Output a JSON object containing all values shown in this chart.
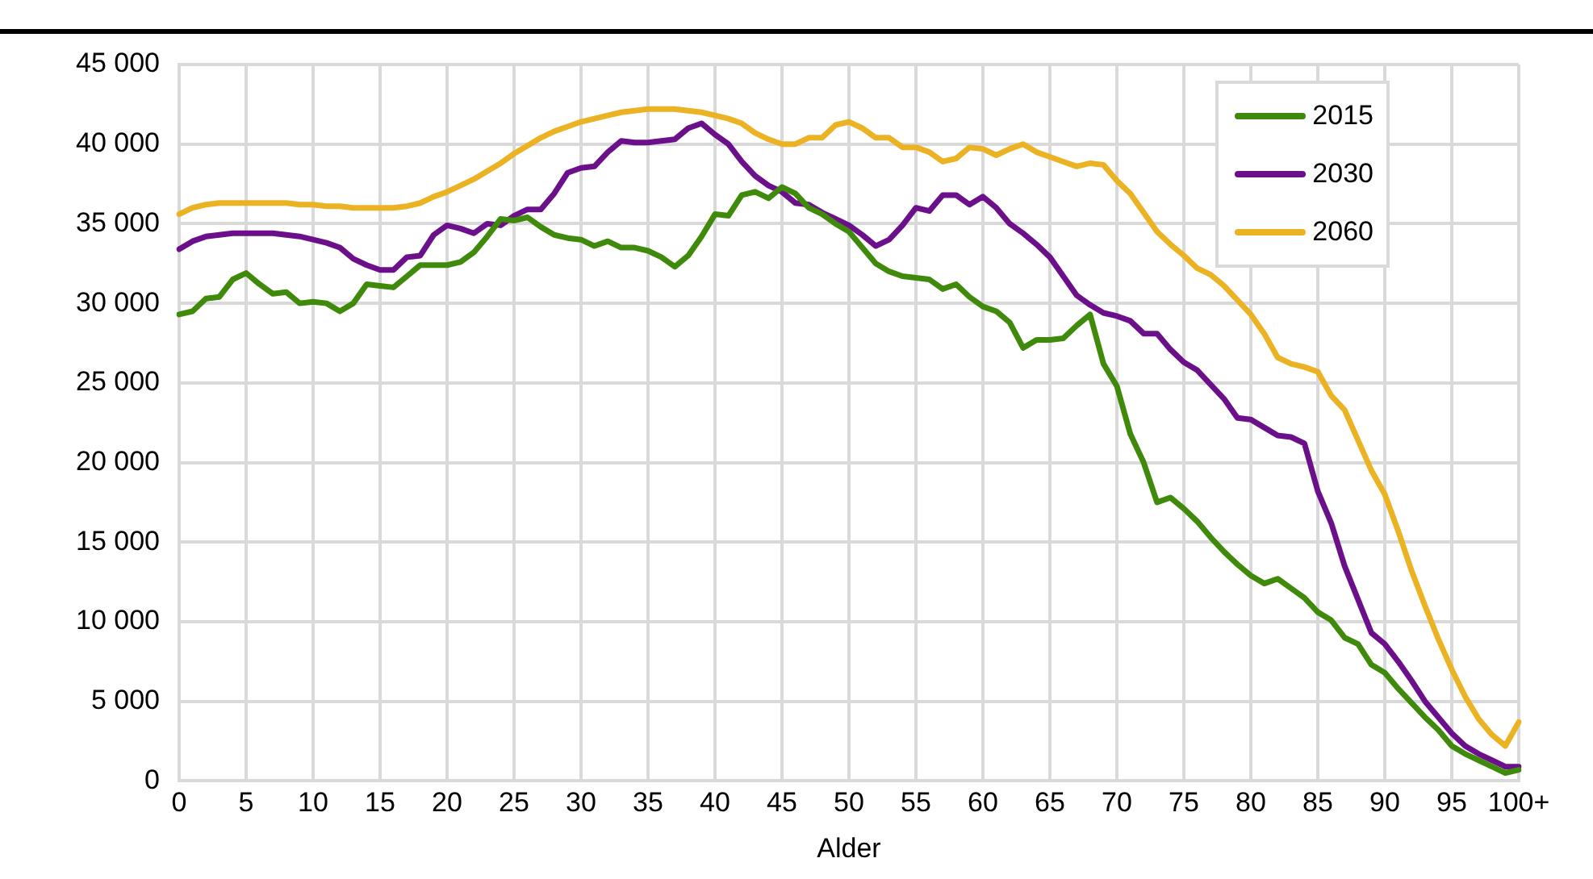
{
  "chart_data": {
    "type": "line",
    "xlabel": "Alder",
    "categories": [
      "0",
      null,
      null,
      null,
      null,
      "5",
      null,
      null,
      null,
      null,
      "10",
      null,
      null,
      null,
      null,
      "15",
      null,
      null,
      null,
      null,
      "20",
      null,
      null,
      null,
      null,
      "25",
      null,
      null,
      null,
      null,
      "30",
      null,
      null,
      null,
      null,
      "35",
      null,
      null,
      null,
      null,
      "40",
      null,
      null,
      null,
      null,
      "45",
      null,
      null,
      null,
      null,
      "50",
      null,
      null,
      null,
      null,
      "55",
      null,
      null,
      null,
      null,
      "60",
      null,
      null,
      null,
      null,
      "65",
      null,
      null,
      null,
      null,
      "70",
      null,
      null,
      null,
      null,
      "75",
      null,
      null,
      null,
      null,
      "80",
      null,
      null,
      null,
      null,
      "85",
      null,
      null,
      null,
      null,
      "90",
      null,
      null,
      null,
      null,
      "95",
      null,
      null,
      null,
      null,
      "100+"
    ],
    "series": [
      {
        "name": "2015",
        "color": "#3f8a0a",
        "values": [
          29300,
          29500,
          30300,
          30400,
          31500,
          31900,
          31200,
          30600,
          30700,
          30000,
          30100,
          30000,
          29500,
          30000,
          31200,
          31100,
          31000,
          31700,
          32400,
          32400,
          32400,
          32600,
          33200,
          34200,
          35300,
          35200,
          35400,
          34800,
          34300,
          34100,
          34000,
          33600,
          33900,
          33500,
          33500,
          33300,
          32900,
          32300,
          33000,
          34200,
          35600,
          35500,
          36800,
          37000,
          36600,
          37300,
          36900,
          36000,
          35600,
          35000,
          34500,
          33500,
          32500,
          32000,
          31700,
          31600,
          31500,
          30900,
          31200,
          30400,
          29800,
          29500,
          28800,
          27200,
          27700,
          27700,
          27800,
          28600,
          29300,
          26200,
          24800,
          21800,
          20000,
          17500,
          17800,
          17100,
          16300,
          15300,
          14400,
          13600,
          12900,
          12400,
          12700,
          12100,
          11500,
          10600,
          10100,
          9000,
          8600,
          7300,
          6800,
          5800,
          4900,
          4000,
          3200,
          2200,
          1700,
          1300,
          900,
          500,
          700
        ]
      },
      {
        "name": "2030",
        "color": "#6b0f8a",
        "values": [
          33400,
          33900,
          34200,
          34300,
          34400,
          34400,
          34400,
          34400,
          34300,
          34200,
          34000,
          33800,
          33500,
          32800,
          32400,
          32100,
          32100,
          32900,
          33000,
          34300,
          34900,
          34700,
          34400,
          35000,
          34900,
          35500,
          35900,
          35900,
          36900,
          38200,
          38500,
          38600,
          39500,
          40200,
          40100,
          40100,
          40200,
          40300,
          41000,
          41300,
          40600,
          40000,
          38900,
          38000,
          37400,
          37000,
          36300,
          36200,
          35700,
          35300,
          34900,
          34300,
          33600,
          34000,
          34900,
          36000,
          35800,
          36800,
          36800,
          36200,
          36700,
          36000,
          35000,
          34400,
          33700,
          32900,
          31700,
          30500,
          29900,
          29400,
          29200,
          28900,
          28100,
          28100,
          27100,
          26300,
          25800,
          24900,
          24000,
          22800,
          22700,
          22200,
          21700,
          21600,
          21200,
          18200,
          16200,
          13500,
          11400,
          9300,
          8600,
          7500,
          6300,
          5000,
          4000,
          3000,
          2200,
          1700,
          1300,
          900,
          900
        ]
      },
      {
        "name": "2060",
        "color": "#ebb324",
        "values": [
          35600,
          36000,
          36200,
          36300,
          36300,
          36300,
          36300,
          36300,
          36300,
          36200,
          36200,
          36100,
          36100,
          36000,
          36000,
          36000,
          36000,
          36100,
          36300,
          36700,
          37000,
          37400,
          37800,
          38300,
          38800,
          39400,
          39900,
          40400,
          40800,
          41100,
          41400,
          41600,
          41800,
          42000,
          42100,
          42200,
          42200,
          42200,
          42100,
          42000,
          41800,
          41600,
          41300,
          40700,
          40300,
          40000,
          40000,
          40400,
          40400,
          41200,
          41400,
          41000,
          40400,
          40400,
          39800,
          39800,
          39500,
          38900,
          39100,
          39800,
          39700,
          39300,
          39700,
          40000,
          39500,
          39200,
          38900,
          38600,
          38800,
          38700,
          37700,
          36900,
          35700,
          34500,
          33700,
          33000,
          32200,
          31800,
          31100,
          30200,
          29300,
          28100,
          26600,
          26200,
          26000,
          25700,
          24200,
          23300,
          21400,
          19500,
          18000,
          15700,
          13200,
          11000,
          8900,
          7000,
          5300,
          3900,
          2900,
          2200,
          3700
        ]
      }
    ],
    "ylim": [
      0,
      45000
    ],
    "yticks": [
      0,
      {
        "value": 5000,
        "label": "5 000"
      },
      {
        "value": 10000,
        "label": "10 000"
      },
      {
        "value": 15000,
        "label": "15 000"
      },
      {
        "value": 20000,
        "label": "20 000"
      },
      {
        "value": 25000,
        "label": "25 000"
      },
      {
        "value": 30000,
        "label": "30 000"
      },
      {
        "value": 35000,
        "label": "35 000"
      },
      {
        "value": 40000,
        "label": "40 000"
      },
      {
        "value": 45000,
        "label": "45 000"
      }
    ],
    "grid": true,
    "legend": "top right",
    "marker": "none",
    "line_style": "solid"
  }
}
